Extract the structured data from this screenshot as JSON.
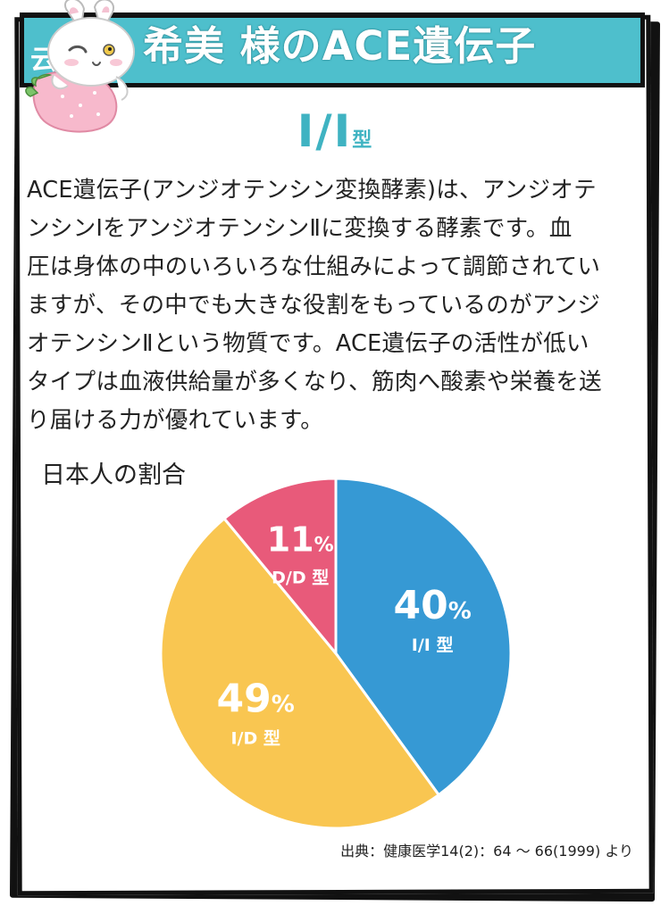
{
  "header": {
    "title": "希美 様のACE遺伝子"
  },
  "type_heading": {
    "main": "I/I",
    "suffix": "型"
  },
  "description_lines": [
    "ACE遺伝子(アンジオテンシン変換酵素)は、アンジオテ",
    "ンシンⅠをアンジオテンシンⅡに変換する酵素です。血",
    "圧は身体の中のいろいろな仕組みによって調節されてい",
    "ますが、その中でも大きな役割をもっているのがアンジ",
    "オテンシンⅡという物質です。ACE遺伝子の活性が低い",
    "タイプは血液供給量が多くなり、筋肉へ酸素や栄養を送",
    "り届ける力が優れています。"
  ],
  "chart_data": {
    "type": "pie",
    "title": "日本人の割合",
    "slices": [
      {
        "name": "I/I 型",
        "value": 40,
        "label": "40",
        "unit": "%",
        "color": "#3699d4"
      },
      {
        "name": "I/D 型",
        "value": 49,
        "label": "49",
        "unit": "%",
        "color": "#f9c651"
      },
      {
        "name": "D/D 型",
        "value": 11,
        "label": "11",
        "unit": "%",
        "color": "#e85a7a"
      }
    ],
    "start_angle_deg": 0,
    "direction": "clockwise"
  },
  "source": "出典：健康医学14(2)：64 〜 66(1999) より",
  "colors": {
    "header_bg": "#4ebfcc",
    "accent_text": "#3fb3c2",
    "frame": "#111111"
  },
  "icons": {
    "mascot": "rabbit-with-strawberry-icon"
  }
}
